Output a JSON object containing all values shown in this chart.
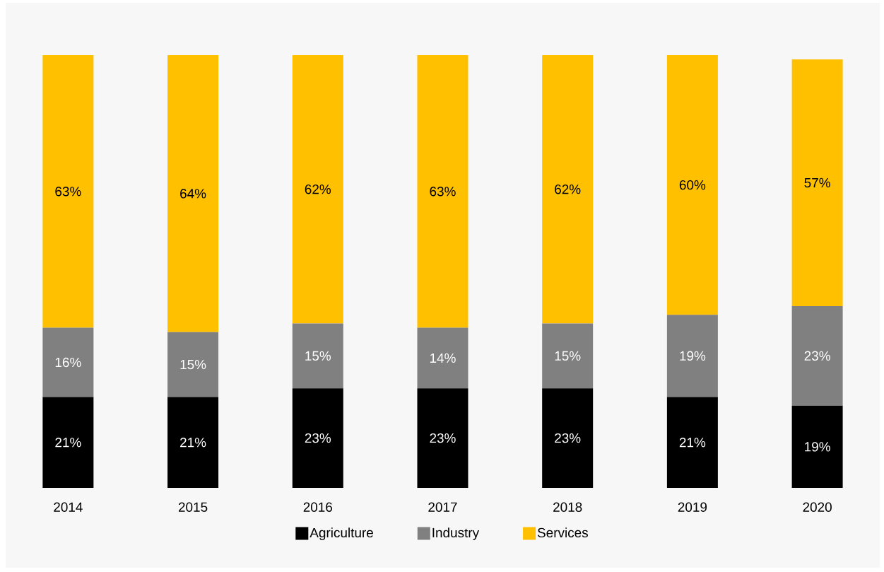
{
  "chart_data": {
    "type": "bar",
    "stacked": true,
    "legend": "bottom",
    "categories": [
      "2014",
      "2015",
      "2016",
      "2017",
      "2018",
      "2019",
      "2020"
    ],
    "series": [
      {
        "name": "Agriculture",
        "color": "#000000",
        "values": [
          21,
          21,
          23,
          23,
          23,
          21,
          19
        ],
        "value_labels": [
          "21%",
          "21%",
          "23%",
          "23%",
          "23%",
          "21%",
          "19%"
        ]
      },
      {
        "name": "Industry",
        "color": "#808080",
        "values": [
          16,
          15,
          15,
          14,
          15,
          19,
          23
        ],
        "value_labels": [
          "16%",
          "15%",
          "15%",
          "14%",
          "15%",
          "19%",
          "23%"
        ]
      },
      {
        "name": "Services",
        "color": "#ffc000",
        "values": [
          63,
          64,
          62,
          63,
          62,
          60,
          57
        ],
        "value_labels": [
          "63%",
          "64%",
          "62%",
          "63%",
          "62%",
          "60%",
          "57%"
        ]
      }
    ]
  }
}
